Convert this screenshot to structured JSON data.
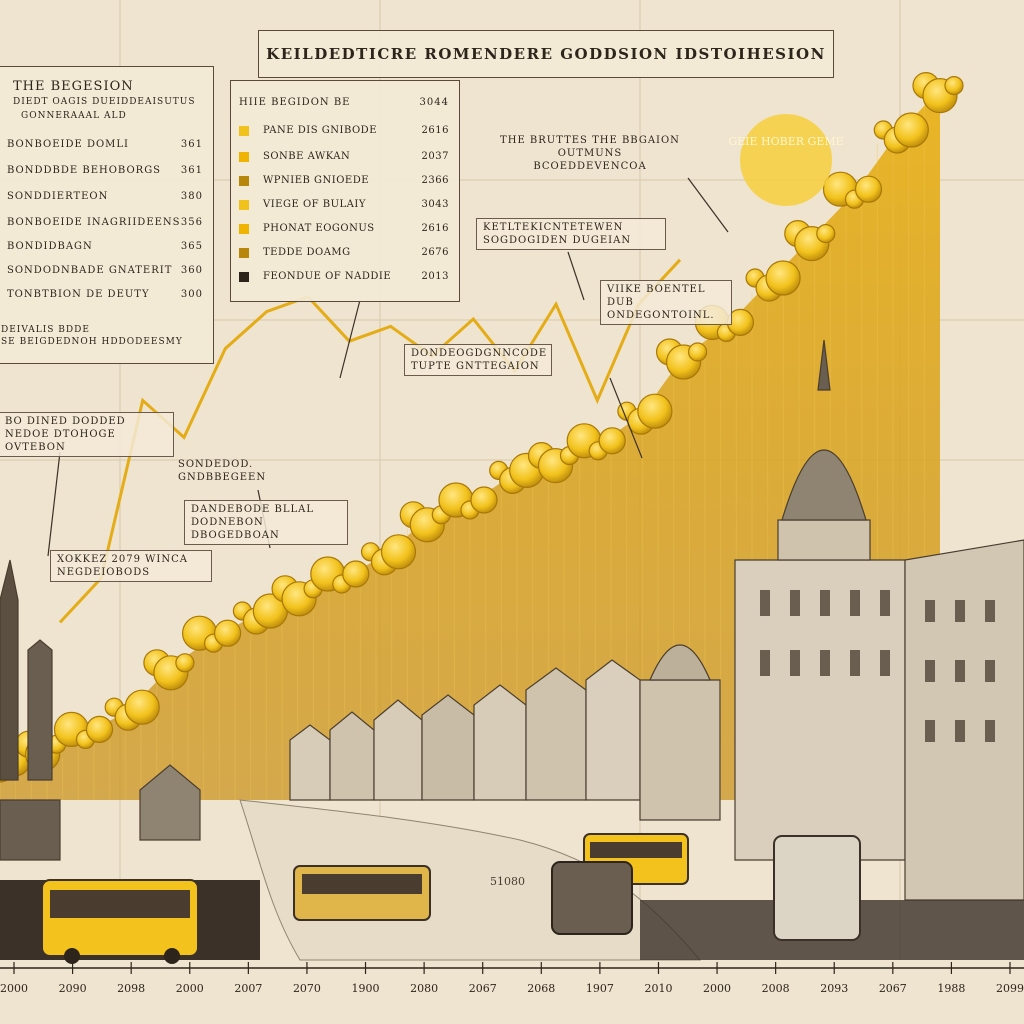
{
  "colors": {
    "gold": "#e0a91a",
    "gold_dark": "#b8860b",
    "coin": "#f2c21c",
    "ink": "#2d241b",
    "paper": "#efe4cf"
  },
  "title": "KEILDEDTICRE ROMENDERE GODDSION IDSTOIHESION",
  "legend_left": {
    "heading": "THE BEGESION",
    "sub1": "DIEDT OAGIS DUEIDDEAISUTUS",
    "sub2": "GONNERAAAL ALD",
    "rows": [
      {
        "label": "BONBOEIDE DOMLI",
        "value": "361"
      },
      {
        "label": "BONDDBDE BEHOBORGS",
        "value": "361"
      },
      {
        "label": "SONDDIERTEON",
        "value": "380"
      },
      {
        "label": "BONBOEIDE INAGRIIDEENS",
        "value": "356"
      },
      {
        "label": "BONDIDBAGN",
        "value": "365"
      },
      {
        "label": "SONDODNBADE GNATERIT",
        "value": "360"
      },
      {
        "label": "TONBTBION DE DEUTY",
        "value": "300"
      }
    ],
    "foot1": "DEIVALIS BDDE",
    "foot2": "SE BEIGDEDNOH HDDODEESMY"
  },
  "legend_mid": {
    "heading_label": "HIIE BEGIDON BE",
    "heading_value": "3044",
    "rows": [
      {
        "label": "PANE DIS GNIBODE",
        "value": "2616",
        "color": "#f2c21c"
      },
      {
        "label": "SONBE AWKAN",
        "value": "2037",
        "color": "#f0b400"
      },
      {
        "label": "WPNIEB GNIOEDE",
        "value": "2366",
        "color": "#b8860b"
      },
      {
        "label": "VIEGE OF BULAIY",
        "value": "3043",
        "color": "#f2c21c"
      },
      {
        "label": "PHONAT EOGONUS",
        "value": "2616",
        "color": "#f0b400"
      },
      {
        "label": "TEDDE DOAMG",
        "value": "2676",
        "color": "#b8860b"
      },
      {
        "label": "FEONDUE OF NADDIE",
        "value": "2013",
        "color": "#2d241b"
      }
    ]
  },
  "annotations": [
    {
      "name": "ann-right-top",
      "text": "THE BRUTTES THE BBGAION OUTMUNS BCOEDDEVENCOA"
    },
    {
      "name": "ann-right-mid",
      "text": "KETLTEKICNTETEWEN"
    },
    {
      "name": "ann-right-mid2",
      "text": "SOGDOGIDEN DUGEIAN"
    },
    {
      "name": "ann-right-low",
      "text": "VIIKE BOENTEL DUB ONDEGONTOINL."
    },
    {
      "name": "ann-center",
      "text": "DONDEOGDGNNCODE TUPTE GNTTEGAION"
    },
    {
      "name": "ann-left-mid",
      "text": "BO DINED DODDED NEDOE DTOHOGE OVTEBON"
    },
    {
      "name": "ann-lower-center",
      "text": "SONDEDOD. GNDBBEGEEN"
    },
    {
      "name": "ann-lower-center2",
      "text": "DANDEBODE BLLAL DODNEBON DBOGEDBOAN"
    },
    {
      "name": "ann-lower-left",
      "text": "XOKKEZ 2079 WINCA NEGDEIOBODS"
    },
    {
      "name": "gold-seal",
      "text": "GEIE HOBER GEME"
    },
    {
      "name": "river-sign",
      "text": "51080"
    }
  ],
  "chart_data": {
    "type": "area",
    "title": "KEILDEDTICRE ROMENDERE GODDSION IDSTOIHESION",
    "xlabel": "",
    "ylabel": "",
    "ylim": [
      0,
      100
    ],
    "x_ticks": [
      "2000",
      "2090",
      "2098",
      "2000",
      "2007",
      "2070",
      "1900",
      "2080",
      "2067",
      "2068",
      "1907",
      "2010",
      "2000",
      "2008",
      "2093",
      "2067",
      "1988",
      "2099"
    ],
    "series": [
      {
        "name": "gold area",
        "values": [
          5,
          7,
          9,
          12,
          18,
          22,
          25,
          28,
          30,
          33,
          38,
          40,
          44,
          46,
          48,
          52,
          60,
          64,
          70,
          76,
          82,
          90,
          96
        ]
      },
      {
        "name": "trend line",
        "values": [
          24,
          30,
          54,
          49,
          61,
          66,
          68,
          62,
          64,
          60,
          65,
          58,
          67,
          54,
          67,
          73
        ]
      }
    ]
  }
}
